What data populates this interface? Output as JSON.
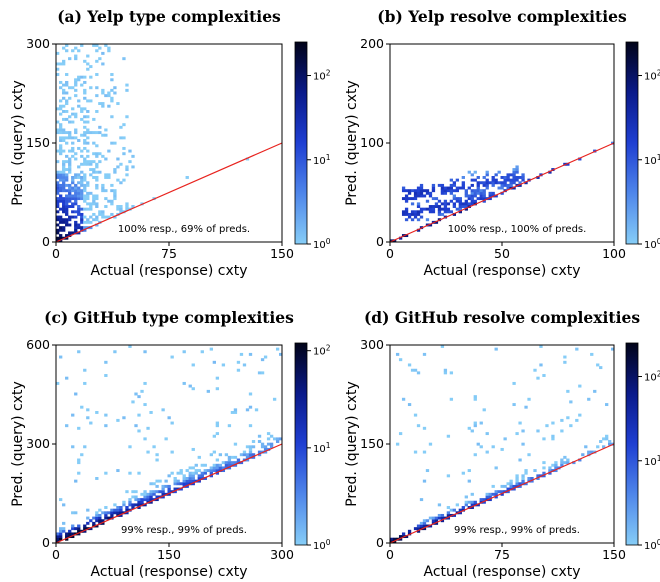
{
  "chart_data": [
    {
      "type": "heatmap",
      "title": "(a) Yelp type complexities",
      "xlabel": "Actual (response) cxty",
      "ylabel": "Pred. (query) cxty",
      "xlim": [
        0,
        150
      ],
      "ylim": [
        0,
        300
      ],
      "xticks": [
        "0",
        "75",
        "150"
      ],
      "yticks": [
        "0",
        "150",
        "300"
      ],
      "colorbar": {
        "scale": "log",
        "ticks": [
          "10^0",
          "10^1",
          "10^2"
        ],
        "min": 1,
        "max": 250
      },
      "reference_line": {
        "x": [
          0,
          150
        ],
        "y": [
          0,
          150
        ],
        "color": "#e8231e"
      },
      "annotation": "100% resp., 69% of preds.",
      "pattern": "yelp_type"
    },
    {
      "type": "heatmap",
      "title": "(b) Yelp resolve complexities",
      "xlabel": "Actual (response) cxty",
      "ylabel": "Pred. (query) cxty",
      "xlim": [
        0,
        100
      ],
      "ylim": [
        0,
        200
      ],
      "xticks": [
        "0",
        "50",
        "100"
      ],
      "yticks": [
        "0",
        "100",
        "200"
      ],
      "colorbar": {
        "scale": "log",
        "ticks": [
          "10^0",
          "10^1",
          "10^2"
        ],
        "min": 1,
        "max": 250
      },
      "reference_line": {
        "x": [
          0,
          100
        ],
        "y": [
          0,
          100
        ],
        "color": "#e8231e"
      },
      "annotation": "100% resp., 100% of preds.",
      "pattern": "yelp_resolve"
    },
    {
      "type": "heatmap",
      "title": "(c) GitHub type complexities",
      "xlabel": "Actual (response) cxty",
      "ylabel": "Pred. (query) cxty",
      "xlim": [
        0,
        300
      ],
      "ylim": [
        0,
        600
      ],
      "xticks": [
        "0",
        "150",
        "300"
      ],
      "yticks": [
        "0",
        "300",
        "600"
      ],
      "colorbar": {
        "scale": "log",
        "ticks": [
          "10^0",
          "10^1",
          "10^2"
        ],
        "min": 1,
        "max": 120
      },
      "reference_line": {
        "x": [
          0,
          300
        ],
        "y": [
          0,
          300
        ],
        "color": "#e8231e"
      },
      "annotation": "99% resp., 99% of preds.",
      "pattern": "github_type"
    },
    {
      "type": "heatmap",
      "title": "(d) GitHub resolve complexities",
      "xlabel": "Actual (response) cxty",
      "ylabel": "Pred. (query) cxty",
      "xlim": [
        0,
        150
      ],
      "ylim": [
        0,
        300
      ],
      "xticks": [
        "0",
        "75",
        "150"
      ],
      "yticks": [
        "0",
        "150",
        "300"
      ],
      "colorbar": {
        "scale": "log",
        "ticks": [
          "10^0",
          "10^1",
          "10^2"
        ],
        "min": 1,
        "max": 250
      },
      "reference_line": {
        "x": [
          0,
          150
        ],
        "y": [
          0,
          150
        ],
        "color": "#e8231e"
      },
      "annotation": "99% resp., 99% of preds.",
      "pattern": "github_resolve"
    }
  ]
}
